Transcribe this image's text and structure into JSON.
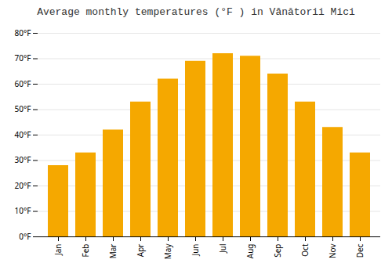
{
  "chart_data": {
    "type": "bar",
    "title": "Average monthly temperatures (°F ) in Vânătorii Mici",
    "categories": [
      "Jan",
      "Feb",
      "Mar",
      "Apr",
      "May",
      "Jun",
      "Jul",
      "Aug",
      "Sep",
      "Oct",
      "Nov",
      "Dec"
    ],
    "values": [
      28,
      33,
      42,
      53,
      62,
      69,
      72,
      71,
      64,
      53,
      43,
      33
    ],
    "color": "#F5A800",
    "ylim": [
      0,
      80
    ],
    "yticks": [
      {
        "value": 0,
        "label": "0°F"
      },
      {
        "value": 10,
        "label": "10°F"
      },
      {
        "value": 20,
        "label": "20°F"
      },
      {
        "value": 30,
        "label": "30°F"
      },
      {
        "value": 40,
        "label": "40°F"
      },
      {
        "value": 50,
        "label": "50°F"
      },
      {
        "value": 60,
        "label": "60°F"
      },
      {
        "value": 70,
        "label": "70°F"
      },
      {
        "value": 80,
        "label": "80°F"
      }
    ],
    "grid": true
  }
}
